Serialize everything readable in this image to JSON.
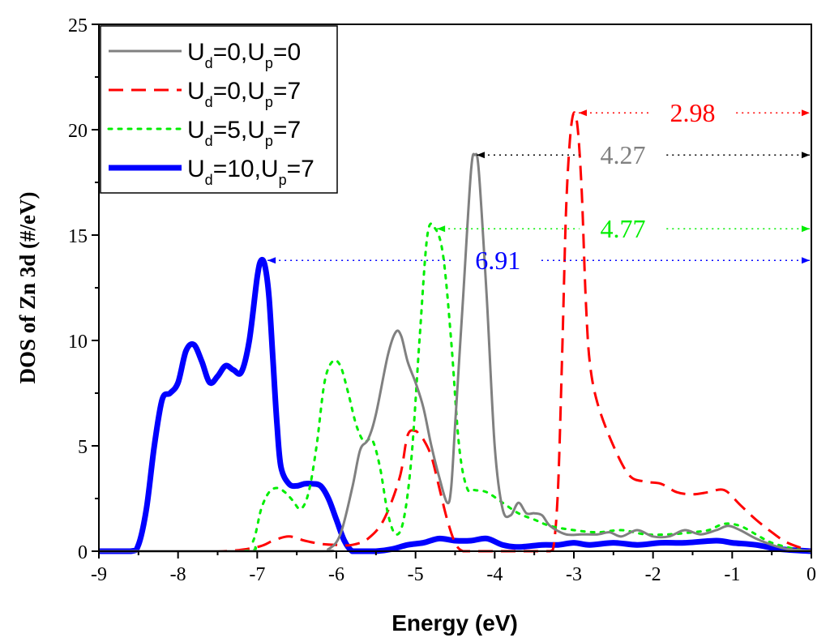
{
  "chart_data": {
    "type": "line",
    "xlabel": "Energy (eV)",
    "ylabel": "DOS of Zn 3d (#/eV)",
    "xlim": [
      -9,
      0
    ],
    "ylim": [
      0,
      25
    ],
    "x_ticks": [
      -9,
      -8,
      -7,
      -6,
      -5,
      -4,
      -3,
      -2,
      -1,
      0
    ],
    "x_tick_labels": [
      "-9",
      "-8",
      "-7",
      "-6",
      "-5",
      "-4",
      "-3",
      "-2",
      "-1",
      "0"
    ],
    "y_ticks": [
      0,
      5,
      10,
      15,
      20,
      25
    ],
    "y_tick_labels": [
      "0",
      "5",
      "10",
      "15",
      "20",
      "25"
    ],
    "legend_position": "top-left",
    "series": [
      {
        "name": "Ud=0,Up=0",
        "legend": {
          "main": "U",
          "p1": "d",
          "mid": "=0,U",
          "p2": "p",
          "end": "=0"
        },
        "color": "#808080",
        "style": "solid",
        "x": [
          -9,
          -6.3,
          -6.1,
          -5.95,
          -5.8,
          -5.7,
          -5.6,
          -5.5,
          -5.35,
          -5.25,
          -5.18,
          -5.1,
          -5.0,
          -4.9,
          -4.8,
          -4.7,
          -4.6,
          -4.55,
          -4.5,
          -4.4,
          -4.3,
          -4.25,
          -4.2,
          -4.1,
          -4.0,
          -3.9,
          -3.8,
          -3.7,
          -3.6,
          -3.5,
          -3.4,
          -3.3,
          -3.1,
          -2.9,
          -2.7,
          -2.55,
          -2.4,
          -2.2,
          -2.0,
          -1.8,
          -1.6,
          -1.4,
          -1.2,
          -1.05,
          -0.9,
          -0.7,
          -0.5,
          -0.3,
          0
        ],
        "y": [
          0,
          0,
          0.1,
          0.8,
          3.0,
          4.8,
          5.3,
          6.5,
          9.3,
          10.4,
          10.2,
          9.0,
          8.0,
          6.8,
          5.0,
          3.5,
          2.3,
          3.0,
          6.0,
          12.0,
          18.0,
          18.8,
          18.0,
          12.0,
          5.0,
          2.0,
          1.7,
          2.3,
          1.8,
          1.8,
          1.7,
          1.2,
          0.8,
          0.8,
          0.8,
          0.9,
          0.7,
          1.0,
          0.7,
          0.7,
          1.0,
          0.8,
          1.0,
          1.2,
          1.0,
          0.6,
          0.3,
          0.1,
          0
        ]
      },
      {
        "name": "Ud=0,Up=7",
        "legend": {
          "main": "U",
          "p1": "d",
          "mid": "=0,U",
          "p2": "p",
          "end": "=7"
        },
        "color": "#ff0000",
        "style": "dashed",
        "x": [
          -9,
          -7.5,
          -7.0,
          -6.8,
          -6.6,
          -6.4,
          -6.2,
          -6.0,
          -5.8,
          -5.6,
          -5.4,
          -5.2,
          -5.1,
          -5.0,
          -4.95,
          -4.9,
          -4.8,
          -4.7,
          -4.6,
          -4.5,
          -4.4,
          -4.2,
          -4.0,
          -3.8,
          -3.5,
          -3.3,
          -3.25,
          -3.2,
          -3.15,
          -3.1,
          -3.05,
          -3.0,
          -2.95,
          -2.9,
          -2.85,
          -2.8,
          -2.7,
          -2.5,
          -2.3,
          -2.1,
          -1.9,
          -1.7,
          -1.5,
          -1.3,
          -1.1,
          -0.9,
          -0.7,
          -0.5,
          -0.3,
          0
        ],
        "y": [
          0,
          0,
          0.2,
          0.5,
          0.7,
          0.5,
          0.35,
          0.3,
          0.3,
          0.6,
          1.5,
          3.5,
          5.5,
          5.7,
          5.5,
          5.3,
          4.5,
          3.0,
          1.5,
          0.4,
          0,
          0,
          0,
          0,
          0,
          0,
          0.4,
          3.0,
          9.0,
          16.0,
          19.5,
          20.8,
          20.0,
          17.0,
          12.0,
          9.0,
          7.0,
          5.0,
          3.6,
          3.3,
          3.2,
          2.8,
          2.7,
          2.8,
          2.9,
          2.2,
          1.5,
          0.9,
          0.4,
          0
        ]
      },
      {
        "name": "Ud=5,Up=7",
        "legend": {
          "main": "U",
          "p1": "d",
          "mid": "=5,U",
          "p2": "p",
          "end": "=7"
        },
        "color": "#00ee00",
        "style": "dotted",
        "x": [
          -9,
          -7.2,
          -7.05,
          -6.95,
          -6.85,
          -6.75,
          -6.65,
          -6.55,
          -6.45,
          -6.35,
          -6.25,
          -6.15,
          -6.05,
          -5.95,
          -5.85,
          -5.75,
          -5.65,
          -5.55,
          -5.45,
          -5.35,
          -5.25,
          -5.15,
          -5.05,
          -4.95,
          -4.85,
          -4.75,
          -4.65,
          -4.55,
          -4.45,
          -4.35,
          -4.25,
          -4.1,
          -3.9,
          -3.7,
          -3.5,
          -3.3,
          -3.0,
          -2.7,
          -2.4,
          -2.1,
          -1.8,
          -1.5,
          -1.3,
          -1.1,
          -0.9,
          -0.7,
          -0.5,
          -0.2,
          0
        ],
        "y": [
          0,
          0,
          0.5,
          2.0,
          2.8,
          3.0,
          2.8,
          2.4,
          2.0,
          2.8,
          5.0,
          8.0,
          9.0,
          8.8,
          7.5,
          6.0,
          5.2,
          5.3,
          4.0,
          1.8,
          0.8,
          1.5,
          4.5,
          10.0,
          15.0,
          15.3,
          14.0,
          10.0,
          5.0,
          3.0,
          2.9,
          2.8,
          2.3,
          1.8,
          1.5,
          1.2,
          1.0,
          0.9,
          1.0,
          0.8,
          0.8,
          0.9,
          1.0,
          1.3,
          1.2,
          0.8,
          0.4,
          0.1,
          0
        ]
      },
      {
        "name": "Ud=10,Up=7",
        "legend": {
          "main": "U",
          "p1": "d",
          "mid": "=10,U",
          "p2": "p",
          "end": "=7"
        },
        "color": "#0000ff",
        "style": "solid-thick",
        "x": [
          -9,
          -8.6,
          -8.5,
          -8.4,
          -8.3,
          -8.2,
          -8.1,
          -8.0,
          -7.9,
          -7.8,
          -7.7,
          -7.6,
          -7.5,
          -7.4,
          -7.3,
          -7.2,
          -7.1,
          -7.0,
          -6.95,
          -6.9,
          -6.85,
          -6.8,
          -6.75,
          -6.7,
          -6.6,
          -6.5,
          -6.4,
          -6.3,
          -6.2,
          -6.1,
          -6.0,
          -5.9,
          -5.8,
          -5.7,
          -5.5,
          -5.3,
          -5.1,
          -4.9,
          -4.7,
          -4.5,
          -4.3,
          -4.1,
          -3.9,
          -3.7,
          -3.4,
          -3.2,
          -3.0,
          -2.8,
          -2.5,
          -2.2,
          -1.9,
          -1.6,
          -1.2,
          -1.0,
          -0.7,
          -0.4,
          0
        ],
        "y": [
          0,
          0,
          0.3,
          2.0,
          5.0,
          7.2,
          7.5,
          8.0,
          9.5,
          9.8,
          9.0,
          8.0,
          8.3,
          8.8,
          8.6,
          8.5,
          10.0,
          13.0,
          13.8,
          13.5,
          12.0,
          9.0,
          6.0,
          4.0,
          3.2,
          3.1,
          3.2,
          3.2,
          3.1,
          2.5,
          1.5,
          0.5,
          0,
          0,
          0,
          0.1,
          0.3,
          0.4,
          0.6,
          0.5,
          0.5,
          0.6,
          0.3,
          0.2,
          0.3,
          0.3,
          0.4,
          0.3,
          0.4,
          0.3,
          0.4,
          0.4,
          0.5,
          0.4,
          0.3,
          0.1,
          0
        ]
      }
    ],
    "annotations": [
      {
        "label": "2.98",
        "color": "#ff0000",
        "from_x": -2.98,
        "to_x": 0,
        "y": 20.8,
        "label_x": -1.5,
        "label_gap": 0.55
      },
      {
        "label": "4.27",
        "color": "#808080",
        "arrow_color": "#000000",
        "from_x": -4.27,
        "to_x": 0,
        "y": 18.8,
        "label_x": -2.38,
        "label_gap": 0.55
      },
      {
        "label": "4.77",
        "color": "#00ee00",
        "from_x": -4.77,
        "to_x": 0,
        "y": 15.3,
        "label_x": -2.38,
        "label_gap": 0.55
      },
      {
        "label": "6.91",
        "color": "#0000ff",
        "from_x": -6.91,
        "to_x": 0,
        "y": 13.8,
        "label_x": -3.96,
        "label_gap": 0.55
      }
    ]
  }
}
